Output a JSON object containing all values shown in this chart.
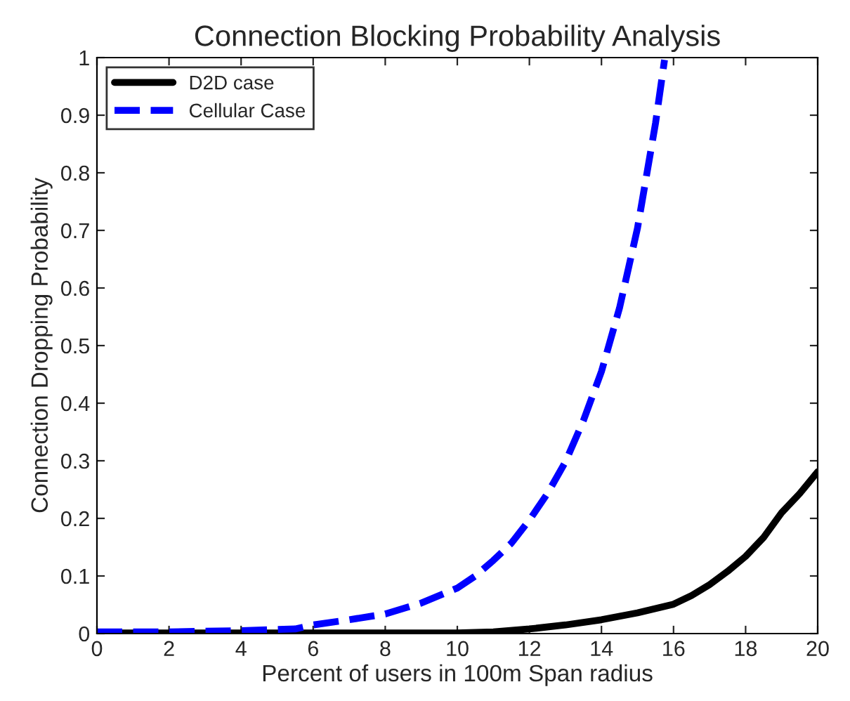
{
  "chart_data": {
    "type": "line",
    "title": "Connection Blocking Probability Analysis",
    "xlabel": "Percent of users in 100m Span radius",
    "ylabel": "Connection Dropping Probability",
    "xlim": [
      0,
      20
    ],
    "ylim": [
      0,
      1
    ],
    "xticks": [
      0,
      2,
      4,
      6,
      8,
      10,
      12,
      14,
      16,
      18,
      20
    ],
    "yticks": [
      0,
      0.1,
      0.2,
      0.3,
      0.4,
      0.5,
      0.6,
      0.7,
      0.8,
      0.9,
      1
    ],
    "grid": false,
    "legend": "top left",
    "series": [
      {
        "name": "D2D case",
        "color": "#000000",
        "line_style": "solid",
        "x": [
          0,
          2,
          4,
          6,
          8,
          10,
          11,
          12,
          13,
          14,
          15,
          16,
          16.5,
          17,
          17.5,
          18,
          18.5,
          19,
          19.5,
          20
        ],
        "values": [
          0.001,
          0.001,
          0.001,
          0.001,
          0.001,
          0.001,
          0.003,
          0.008,
          0.015,
          0.024,
          0.036,
          0.051,
          0.066,
          0.085,
          0.108,
          0.134,
          0.167,
          0.21,
          0.243,
          0.281
        ]
      },
      {
        "name": "Cellular Case",
        "color": "#0000ff",
        "line_style": "dashed",
        "x": [
          0,
          2,
          4,
          5.5,
          6,
          7,
          8,
          9,
          10,
          10.5,
          11,
          11.5,
          12,
          12.5,
          13,
          13.5,
          14,
          14.5,
          15,
          15.5,
          15.75
        ],
        "values": [
          0.003,
          0.003,
          0.005,
          0.008,
          0.015,
          0.024,
          0.034,
          0.053,
          0.079,
          0.1,
          0.127,
          0.157,
          0.197,
          0.243,
          0.298,
          0.37,
          0.455,
          0.565,
          0.704,
          0.886,
          0.996
        ]
      }
    ]
  }
}
